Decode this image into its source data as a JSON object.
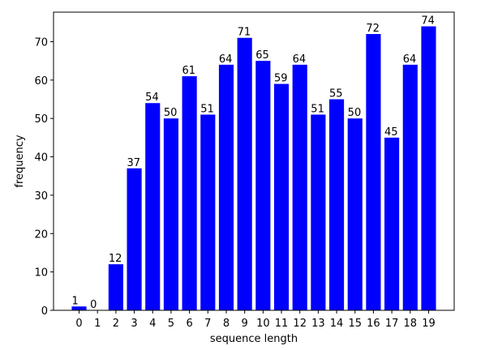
{
  "chart_data": {
    "type": "bar",
    "x_label": "sequence length",
    "y_label": "frequency",
    "x": [
      0,
      1,
      2,
      3,
      4,
      5,
      6,
      7,
      8,
      9,
      10,
      11,
      12,
      13,
      14,
      15,
      16,
      17,
      18,
      19
    ],
    "values": [
      1,
      0,
      12,
      37,
      54,
      50,
      61,
      51,
      64,
      71,
      65,
      59,
      64,
      51,
      55,
      50,
      72,
      45,
      64,
      74
    ],
    "color": "#0000ff",
    "xlim": [
      -1.39,
      20.39
    ],
    "xticks": [
      0,
      1,
      2,
      3,
      4,
      5,
      6,
      7,
      8,
      9,
      10,
      11,
      12,
      13,
      14,
      15,
      16,
      17,
      18,
      19
    ],
    "ylim": [
      0,
      77.7
    ],
    "yticks": [
      0,
      10,
      20,
      30,
      40,
      50,
      60,
      70
    ],
    "grid": false
  }
}
